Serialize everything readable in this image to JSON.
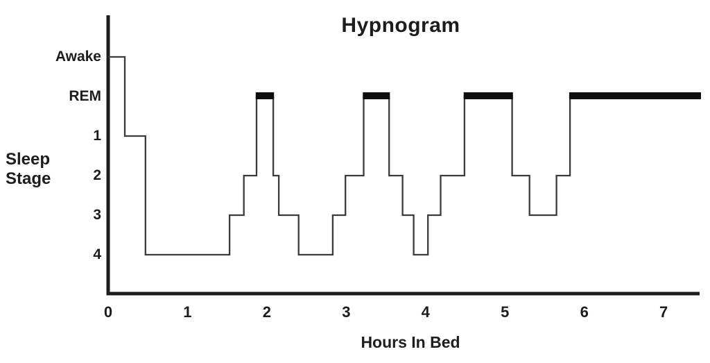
{
  "page": {
    "background_color": "#ffffff",
    "text_color": "#1d1d1d"
  },
  "chart_data": {
    "type": "line",
    "subtype": "step-hypnogram",
    "title": "Hypnogram",
    "xlabel": "Hours In Bed",
    "ylabel": "Sleep Stage",
    "grid": false,
    "legend": false,
    "axis_color": "#1d1d1d",
    "line_color": "#3a3a3a",
    "rem_bar_color": "#0d0d0d",
    "x_ticks": [
      "0",
      "1",
      "2",
      "3",
      "4",
      "5",
      "6",
      "7"
    ],
    "xlim": [
      0,
      7.46
    ],
    "y_categories": [
      "Awake",
      "REM",
      "1",
      "2",
      "3",
      "4"
    ],
    "segments": [
      {
        "stage": "Awake",
        "start": 0.0,
        "end": 0.21
      },
      {
        "stage": "1",
        "start": 0.21,
        "end": 0.47
      },
      {
        "stage": "4",
        "start": 0.47,
        "end": 1.53
      },
      {
        "stage": "3",
        "start": 1.53,
        "end": 1.71
      },
      {
        "stage": "2",
        "start": 1.71,
        "end": 1.87
      },
      {
        "stage": "REM",
        "start": 1.87,
        "end": 2.08
      },
      {
        "stage": "2",
        "start": 2.08,
        "end": 2.15
      },
      {
        "stage": "3",
        "start": 2.15,
        "end": 2.4
      },
      {
        "stage": "4",
        "start": 2.4,
        "end": 2.83
      },
      {
        "stage": "3",
        "start": 2.83,
        "end": 2.99
      },
      {
        "stage": "2",
        "start": 2.99,
        "end": 3.22
      },
      {
        "stage": "REM",
        "start": 3.22,
        "end": 3.54
      },
      {
        "stage": "2",
        "start": 3.54,
        "end": 3.71
      },
      {
        "stage": "3",
        "start": 3.71,
        "end": 3.85
      },
      {
        "stage": "4",
        "start": 3.85,
        "end": 4.03
      },
      {
        "stage": "3",
        "start": 4.03,
        "end": 4.19
      },
      {
        "stage": "2",
        "start": 4.19,
        "end": 4.49
      },
      {
        "stage": "REM",
        "start": 4.49,
        "end": 5.09
      },
      {
        "stage": "2",
        "start": 5.09,
        "end": 5.31
      },
      {
        "stage": "3",
        "start": 5.31,
        "end": 5.65
      },
      {
        "stage": "2",
        "start": 5.65,
        "end": 5.82
      },
      {
        "stage": "REM",
        "start": 5.82,
        "end": 7.46
      }
    ],
    "rem_bars": [
      [
        1.87,
        2.08
      ],
      [
        3.22,
        3.54
      ],
      [
        4.49,
        5.09
      ],
      [
        5.82,
        7.46
      ]
    ]
  }
}
